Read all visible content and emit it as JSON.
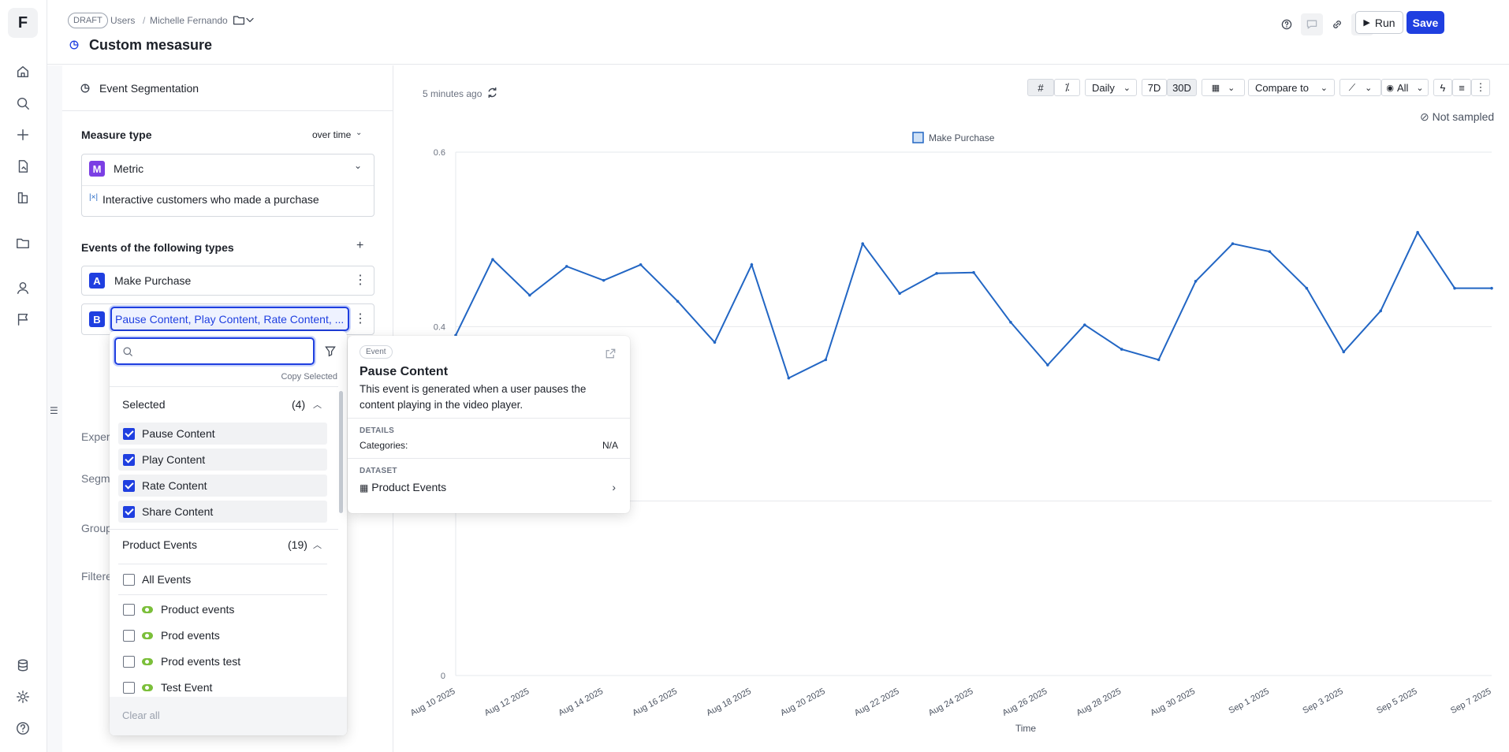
{
  "app": {
    "logo": "F"
  },
  "rail": {
    "icons": [
      "home-icon",
      "search-icon",
      "plus-icon",
      "report-icon",
      "flask-icon",
      "folder-icon",
      "user-icon",
      "flag-icon",
      "database-icon",
      "gear-icon",
      "help-icon"
    ]
  },
  "header": {
    "draft_badge": "DRAFT",
    "breadcrumb": [
      "Users",
      "Michelle Fernando"
    ],
    "title": "Custom mesasure",
    "run_label": "Run",
    "save_label": "Save"
  },
  "left": {
    "panel_title": "Event Segmentation",
    "measure_type_label": "Measure type",
    "measure_type_value": "over time",
    "metric_letter": "M",
    "metric_label": "Metric",
    "metric_formula": "Interactive customers who made a purchase",
    "events_label": "Events of the following types",
    "event_a": {
      "letter": "A",
      "name": "Make Purchase"
    },
    "event_b": {
      "letter": "B",
      "name": "Pause Content, Play Content, Rate Content, ..."
    },
    "hidden_labels": [
      "Experi",
      "Segme",
      "Group",
      "Filtere"
    ]
  },
  "picker": {
    "search_value": "",
    "copy_selected": "Copy Selected",
    "selected_header": "Selected",
    "selected_count": "(4)",
    "selected_items": [
      "Pause Content",
      "Play Content",
      "Rate Content",
      "Share Content"
    ],
    "group_header": "Product Events",
    "group_count": "(19)",
    "all_events": "All Events",
    "group_items": [
      "Product events",
      "Prod events",
      "Prod events test",
      "Test Event"
    ],
    "clear_all": "Clear all"
  },
  "tooltip": {
    "badge": "Event",
    "title": "Pause Content",
    "description": "This event is generated when a user pauses the content playing in the video player.",
    "details_label": "DETAILS",
    "categories_label": "Categories:",
    "categories_value": "N/A",
    "dataset_label": "DATASET",
    "dataset_value": "Product Events"
  },
  "toolbar": {
    "updated": "5 minutes ago",
    "interval": "Daily",
    "range_7d": "7D",
    "range_30d": "30D",
    "compare": "Compare to",
    "visibility": "All",
    "sampling": "Not sampled"
  },
  "colors": {
    "accent": "#1f3fe0",
    "series": "#2266c4",
    "metric_badge": "#7b3fe4"
  },
  "chart_data": {
    "type": "line",
    "xlabel": "Time",
    "ylabel": "",
    "ylim": [
      0,
      0.6
    ],
    "yticks": [
      0,
      0.4,
      0.6
    ],
    "xtick_labels": [
      "Aug 10 2025",
      "Aug 12 2025",
      "Aug 14 2025",
      "Aug 16 2025",
      "Aug 18 2025",
      "Aug 20 2025",
      "Aug 22 2025",
      "Aug 24 2025",
      "Aug 26 2025",
      "Aug 28 2025",
      "Aug 30 2025",
      "Sep 1 2025",
      "Sep 3 2025",
      "Sep 5 2025",
      "Sep 7 2025"
    ],
    "legend_position": "top-center",
    "grid": true,
    "series": [
      {
        "name": "Make Purchase",
        "x": [
          "Aug 10",
          "Aug 11",
          "Aug 12",
          "Aug 13",
          "Aug 14",
          "Aug 15",
          "Aug 16",
          "Aug 17",
          "Aug 18",
          "Aug 19",
          "Aug 20",
          "Aug 21",
          "Aug 22",
          "Aug 23",
          "Aug 24",
          "Aug 25",
          "Aug 26",
          "Aug 27",
          "Aug 28",
          "Aug 29",
          "Aug 30",
          "Aug 31",
          "Sep 1",
          "Sep 2",
          "Sep 3",
          "Sep 4",
          "Sep 5",
          "Sep 6",
          "Sep 7"
        ],
        "values": [
          0.39,
          0.477,
          0.436,
          0.469,
          0.453,
          0.471,
          0.429,
          0.382,
          0.471,
          0.341,
          0.362,
          0.495,
          0.438,
          0.461,
          0.462,
          0.405,
          0.356,
          0.402,
          0.374,
          0.362,
          0.452,
          0.495,
          0.486,
          0.444,
          0.371,
          0.418,
          0.508,
          0.444,
          0.444
        ]
      }
    ]
  }
}
